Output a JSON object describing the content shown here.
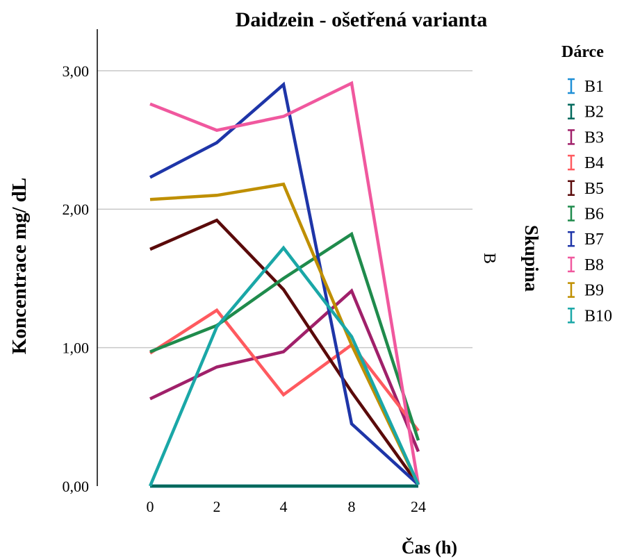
{
  "chart_data": {
    "type": "line",
    "title": "Daidzein - ošetřená varianta",
    "xlabel": "Čas (h)",
    "ylabel": "Koncentrace mg/ dL",
    "categories": [
      "0",
      "2",
      "4",
      "8",
      "24"
    ],
    "ylim": [
      0,
      3.3
    ],
    "yticks": [
      0,
      1,
      2,
      3
    ],
    "ytick_labels": [
      "0,00",
      "1,00",
      "2,00",
      "3,00"
    ],
    "grid": "horizontal",
    "legend_position": "right",
    "panel": {
      "title": "Skupina",
      "value": "B"
    },
    "legend_title": "Dárce",
    "series": [
      {
        "name": "B1",
        "color": "#1f8fd6",
        "values": [
          0,
          0,
          0,
          0,
          0
        ]
      },
      {
        "name": "B2",
        "color": "#00695c",
        "values": [
          0,
          0,
          0,
          0,
          0
        ]
      },
      {
        "name": "B3",
        "color": "#a0206a",
        "values": [
          0.63,
          0.86,
          0.97,
          1.41,
          0.25
        ]
      },
      {
        "name": "B4",
        "color": "#ff5a5f",
        "values": [
          0.96,
          1.27,
          0.66,
          1.02,
          0.4
        ]
      },
      {
        "name": "B5",
        "color": "#5a0a0a",
        "values": [
          1.71,
          1.92,
          1.42,
          0.68,
          0.01
        ]
      },
      {
        "name": "B6",
        "color": "#1f8b4c",
        "values": [
          0.97,
          1.16,
          1.5,
          1.82,
          0.33
        ]
      },
      {
        "name": "B7",
        "color": "#1e35a8",
        "values": [
          2.23,
          2.48,
          2.9,
          0.45,
          0.01
        ]
      },
      {
        "name": "B8",
        "color": "#f0589e",
        "values": [
          2.76,
          2.57,
          2.67,
          2.91,
          0.01
        ]
      },
      {
        "name": "B9",
        "color": "#bf8f00",
        "values": [
          2.07,
          2.1,
          2.18,
          1.02,
          0.01
        ]
      },
      {
        "name": "B10",
        "color": "#1aa7a7",
        "values": [
          0,
          1.15,
          1.72,
          1.08,
          0.01
        ]
      }
    ]
  }
}
